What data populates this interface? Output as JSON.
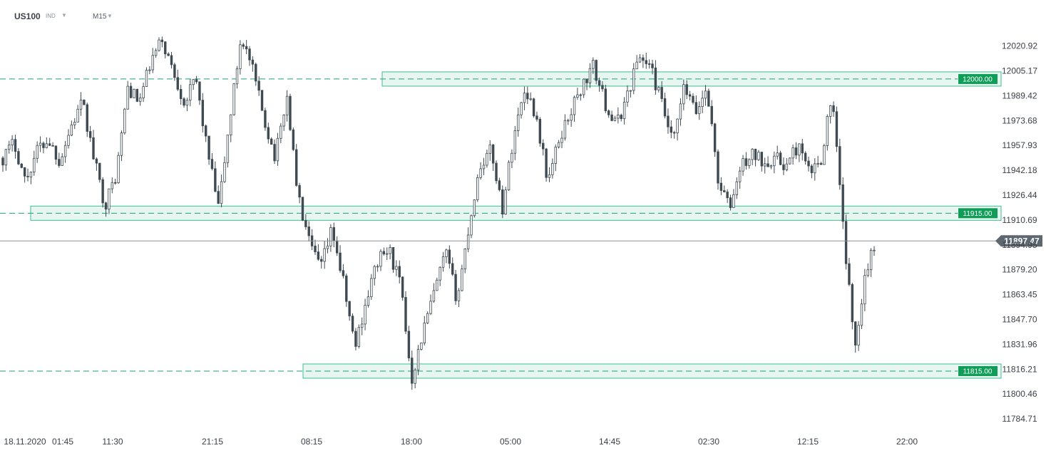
{
  "header": {
    "symbol": "US100",
    "symbol_type": "IND",
    "timeframe": "M15"
  },
  "colors": {
    "candle": "#3f4a52",
    "zone_fill": "#e3f5ee",
    "zone_stroke": "#3cc08f",
    "level_line": "#1f9e7a",
    "level_badge": "#0f9d58",
    "current_line": "#8a8f94",
    "current_badge": "#5d6770"
  },
  "chart_data": {
    "type": "candlestick",
    "title": "",
    "xlabel": "",
    "ylabel": "",
    "ylim": [
      11778,
      12032
    ],
    "y_ticks": [
      "12020.92",
      "12005.17",
      "11989.42",
      "11973.68",
      "11957.93",
      "11942.18",
      "11926.44",
      "11910.69",
      "11894.95",
      "11879.20",
      "11863.45",
      "11847.70",
      "11831.96",
      "11816.21",
      "11800.46",
      "11784.71"
    ],
    "x_ticks": [
      "18.11.2020",
      "01:45",
      "11:30",
      "21:15",
      "08:15",
      "18:00",
      "05:00",
      "14:45",
      "02:30",
      "12:15",
      "22:00"
    ],
    "levels": [
      {
        "label": "12000.00",
        "value": 12000
      },
      {
        "label": "11915.00",
        "value": 11915
      },
      {
        "label": "11815.00",
        "value": 11815
      }
    ],
    "current_price": {
      "label": "11897.47",
      "value": 11897.47
    },
    "series": [
      {
        "values": [
          11950,
          11960,
          11935,
          11955,
          11962,
          11948,
          11970,
          11985,
          11950,
          11920,
          11940,
          11995,
          11985,
          12010,
          12025,
          12005,
          11985,
          12000,
          11955,
          11918,
          11975,
          12028,
          12005,
          11975,
          11950,
          11990,
          11925,
          11895,
          11880,
          11905,
          11870,
          11830,
          11860,
          11885,
          11892,
          11870,
          11810,
          11840,
          11865,
          11890,
          11860,
          11905,
          11945,
          11955,
          11918,
          11965,
          11995,
          11975,
          11935,
          11962,
          11980,
          11995,
          12008,
          11985,
          11970,
          11990,
          12015,
          12008,
          11985,
          11958,
          11995,
          11978,
          11995,
          11935,
          11918,
          11945,
          11952,
          11948,
          11950,
          11945,
          11958,
          11940,
          11948,
          11990,
          11905,
          11830,
          11880,
          11897
        ]
      }
    ]
  }
}
